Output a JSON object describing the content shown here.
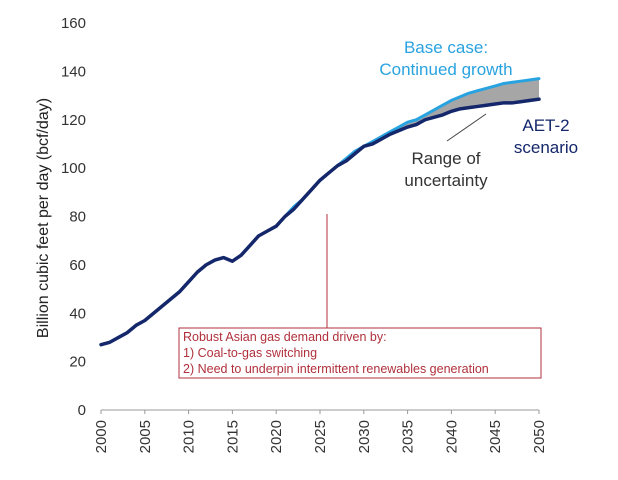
{
  "chart_data": {
    "type": "line",
    "ylabel": "Billion cubic feet per day (bcf/day)",
    "xlabel": "",
    "ylim": [
      0,
      160
    ],
    "xlim": [
      2000,
      2050
    ],
    "y_ticks": [
      0,
      20,
      40,
      60,
      80,
      100,
      120,
      140,
      160
    ],
    "x_ticks": [
      2000,
      2005,
      2010,
      2015,
      2020,
      2025,
      2030,
      2035,
      2040,
      2045,
      2050
    ],
    "grid": false,
    "series": [
      {
        "name": "Base case: Continued growth",
        "color": "#29a3e0",
        "x": [
          2020,
          2021,
          2022,
          2023,
          2024,
          2025,
          2026,
          2027,
          2028,
          2029,
          2030,
          2031,
          2032,
          2033,
          2034,
          2035,
          2036,
          2037,
          2038,
          2039,
          2040,
          2041,
          2042,
          2043,
          2044,
          2045,
          2046,
          2047,
          2048,
          2049,
          2050
        ],
        "values": [
          76,
          80,
          84,
          87,
          91,
          95,
          98,
          101,
          104,
          107,
          109,
          111,
          113,
          115,
          117,
          119,
          120,
          122,
          124,
          126,
          128,
          129.5,
          131,
          132,
          133,
          134,
          135,
          135.5,
          136,
          136.5,
          137
        ]
      },
      {
        "name": "AET-2 scenario",
        "color": "#14276b",
        "x": [
          2000,
          2001,
          2002,
          2003,
          2004,
          2005,
          2006,
          2007,
          2008,
          2009,
          2010,
          2011,
          2012,
          2013,
          2014,
          2015,
          2016,
          2017,
          2018,
          2019,
          2020,
          2021,
          2022,
          2023,
          2024,
          2025,
          2026,
          2027,
          2028,
          2029,
          2030,
          2031,
          2032,
          2033,
          2034,
          2035,
          2036,
          2037,
          2038,
          2039,
          2040,
          2041,
          2042,
          2043,
          2044,
          2045,
          2046,
          2047,
          2048,
          2049,
          2050
        ],
        "values": [
          27,
          28,
          30,
          32,
          35,
          37,
          40,
          43,
          46,
          49,
          53,
          57,
          60,
          62,
          63,
          61.5,
          64,
          68,
          72,
          74,
          76,
          80,
          83,
          87,
          91,
          95,
          98,
          101,
          103,
          106,
          109,
          110,
          112,
          114,
          115.5,
          117,
          118,
          120,
          121,
          122,
          123.5,
          124.5,
          125,
          125.5,
          126,
          126.5,
          127,
          127,
          127.5,
          128,
          128.5
        ]
      }
    ],
    "annotations": {
      "base_case": [
        "Base case:",
        "Continued growth"
      ],
      "aet2": [
        "AET-2",
        "scenario"
      ],
      "uncertainty": [
        "Range of",
        "uncertainty"
      ],
      "box": [
        "Robust Asian gas demand driven by:",
        "1) Coal-to-gas switching",
        "2) Need to underpin intermittent renewables generation"
      ]
    }
  }
}
